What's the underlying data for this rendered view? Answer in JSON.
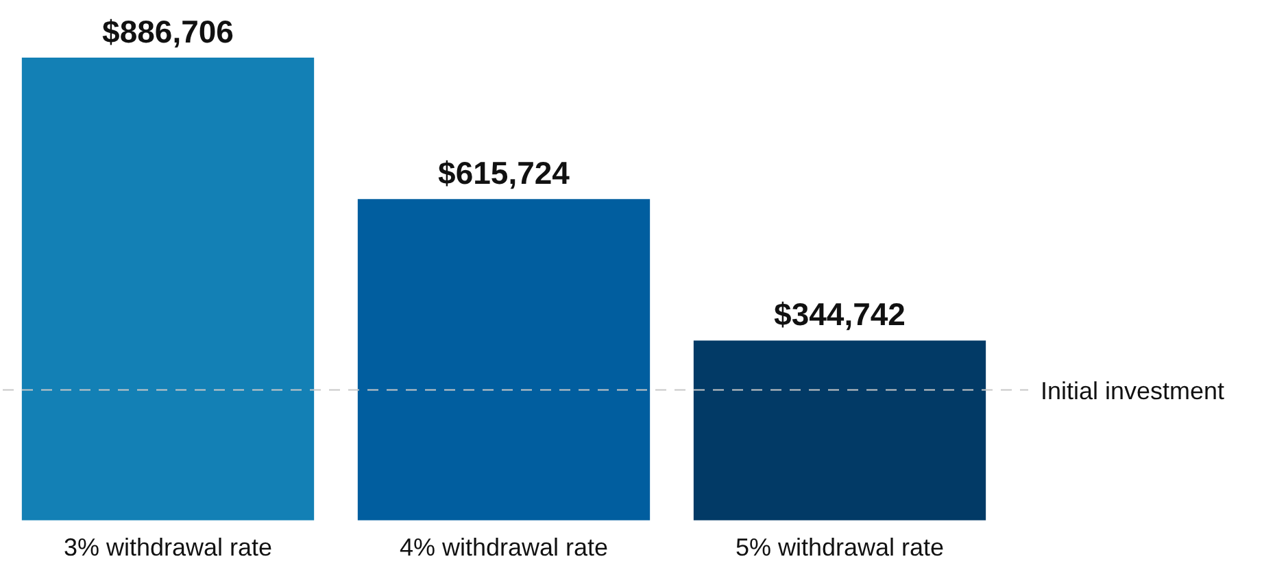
{
  "chart_data": {
    "type": "bar",
    "categories": [
      "3% withdrawal rate",
      "4% withdrawal rate",
      "5% withdrawal rate"
    ],
    "values": [
      886706,
      615724,
      344742
    ],
    "colors": [
      "#1380b5",
      "#015e9f",
      "#023a66"
    ],
    "value_labels": [
      "$886,706",
      "$615,724",
      "$344,742"
    ],
    "ref_lines": [
      {
        "axis": "y",
        "value": 250000,
        "label": "Initial investment",
        "color": "#c8c8c8",
        "line_style": "dashed"
      }
    ],
    "grid": false,
    "legend": false
  }
}
